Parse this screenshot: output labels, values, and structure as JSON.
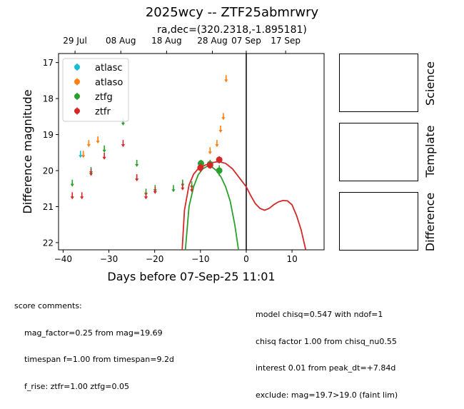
{
  "title": "2025wcy -- ZTF25abmrwry",
  "subtitle": "ra,dec=(320.2318,-1.895181)",
  "chart_data": {
    "type": "scatter",
    "xlabel": "Days before 07-Sep-25 11:01",
    "ylabel": "Difference magnitude",
    "xlim": [
      -41,
      17
    ],
    "ylim": [
      22.2,
      16.75
    ],
    "x_ticks": [
      -40,
      -30,
      -20,
      -10,
      0,
      10
    ],
    "y_ticks": [
      17,
      18,
      19,
      20,
      21,
      22
    ],
    "top_ticks": [
      {
        "x": -37.4,
        "label": "29 Jul"
      },
      {
        "x": -27.4,
        "label": "08 Aug"
      },
      {
        "x": -17.4,
        "label": "18 Aug"
      },
      {
        "x": -7.4,
        "label": "28 Aug"
      },
      {
        "x": 0.0,
        "label": "07 Sep"
      },
      {
        "x": 8.6,
        "label": "17 Sep"
      }
    ],
    "vline_x": 0,
    "legend_position": "upper-left",
    "series": [
      {
        "name": "atlasc",
        "color": "#17becf",
        "upper_limits": [
          {
            "x": -36.2,
            "y": 19.55
          }
        ],
        "detections": []
      },
      {
        "name": "atlaso",
        "color": "#ff7f0e",
        "upper_limits": [
          {
            "x": -35.6,
            "y": 19.55
          },
          {
            "x": -34.4,
            "y": 19.25
          },
          {
            "x": -32.4,
            "y": 19.15
          },
          {
            "x": -7.9,
            "y": 19.45
          },
          {
            "x": -6.4,
            "y": 19.25
          },
          {
            "x": -5.6,
            "y": 18.85
          },
          {
            "x": -5.0,
            "y": 18.5
          },
          {
            "x": -4.4,
            "y": 17.45
          }
        ],
        "detections": []
      },
      {
        "name": "ztfg",
        "color": "#2ca02c",
        "upper_limits": [
          {
            "x": -38.0,
            "y": 20.35
          },
          {
            "x": -33.9,
            "y": 20.0
          },
          {
            "x": -31.0,
            "y": 19.4
          },
          {
            "x": -26.9,
            "y": 18.65
          },
          {
            "x": -23.9,
            "y": 19.8
          },
          {
            "x": -21.9,
            "y": 20.6
          },
          {
            "x": -19.9,
            "y": 20.5
          },
          {
            "x": -15.9,
            "y": 20.5
          },
          {
            "x": -13.9,
            "y": 20.35
          },
          {
            "x": -11.9,
            "y": 20.4
          }
        ],
        "detections": [
          {
            "x": -9.9,
            "y": 19.8,
            "err": 0.1
          },
          {
            "x": -7.9,
            "y": 19.82,
            "err": 0.12
          },
          {
            "x": -5.9,
            "y": 20.0,
            "err": 0.15
          }
        ]
      },
      {
        "name": "ztfr",
        "color": "#d62728",
        "upper_limits": [
          {
            "x": -38.0,
            "y": 20.7
          },
          {
            "x": -35.9,
            "y": 20.7
          },
          {
            "x": -33.9,
            "y": 20.05
          },
          {
            "x": -31.0,
            "y": 19.6
          },
          {
            "x": -26.9,
            "y": 19.25
          },
          {
            "x": -23.9,
            "y": 20.2
          },
          {
            "x": -21.9,
            "y": 20.7
          },
          {
            "x": -19.9,
            "y": 20.55
          },
          {
            "x": -13.9,
            "y": 20.45
          },
          {
            "x": -11.9,
            "y": 20.5
          }
        ],
        "detections": [
          {
            "x": -10.0,
            "y": 19.92,
            "err": 0.12
          },
          {
            "x": -7.9,
            "y": 19.85,
            "err": 0.1
          },
          {
            "x": -5.9,
            "y": 19.7,
            "err": 0.1
          }
        ]
      }
    ],
    "models": [
      {
        "name": "ztfg-model",
        "color": "#2ca02c",
        "points": [
          [
            -13.3,
            22.2
          ],
          [
            -12.5,
            21.0
          ],
          [
            -11.5,
            20.45
          ],
          [
            -10.5,
            20.12
          ],
          [
            -9.5,
            19.95
          ],
          [
            -8.5,
            19.88
          ],
          [
            -7.5,
            19.9
          ],
          [
            -6.5,
            20.0
          ],
          [
            -5.5,
            20.18
          ],
          [
            -4.5,
            20.45
          ],
          [
            -3.5,
            20.85
          ],
          [
            -2.5,
            21.5
          ],
          [
            -1.7,
            22.2
          ]
        ]
      },
      {
        "name": "ztfr-model",
        "color": "#d62728",
        "points": [
          [
            -14.0,
            22.2
          ],
          [
            -13.5,
            21.1
          ],
          [
            -12.5,
            20.4
          ],
          [
            -11.5,
            20.1
          ],
          [
            -10.5,
            19.95
          ],
          [
            -9.0,
            19.85
          ],
          [
            -7.5,
            19.78
          ],
          [
            -6.0,
            19.75
          ],
          [
            -4.5,
            19.8
          ],
          [
            -3.0,
            19.95
          ],
          [
            -1.5,
            20.2
          ],
          [
            0.0,
            20.45
          ],
          [
            1.0,
            20.7
          ],
          [
            2.0,
            20.92
          ],
          [
            3.0,
            21.05
          ],
          [
            4.0,
            21.1
          ],
          [
            5.0,
            21.05
          ],
          [
            6.0,
            20.95
          ],
          [
            7.0,
            20.87
          ],
          [
            8.0,
            20.83
          ],
          [
            9.0,
            20.84
          ],
          [
            10.0,
            20.95
          ],
          [
            11.0,
            21.25
          ],
          [
            12.0,
            21.65
          ],
          [
            13.0,
            22.2
          ]
        ]
      }
    ]
  },
  "panels": {
    "science": "Science",
    "template": "Template",
    "difference": "Difference"
  },
  "score_comments": {
    "heading": "score comments:",
    "lines": [
      "mag_factor=0.25 from mag=19.69",
      "timespan f=1.00 from timespan=9.2d",
      "f_rise: ztfr=1.00 ztfg=0.05"
    ]
  },
  "model_comments": {
    "lines": [
      "model chisq=0.547 with ndof=1",
      "chisq factor 1.00 from chisq_nu0.55",
      "interest 0.01 from peak_dt=+7.84d",
      "exclude: mag=19.7>19.0 (faint lim)"
    ]
  }
}
